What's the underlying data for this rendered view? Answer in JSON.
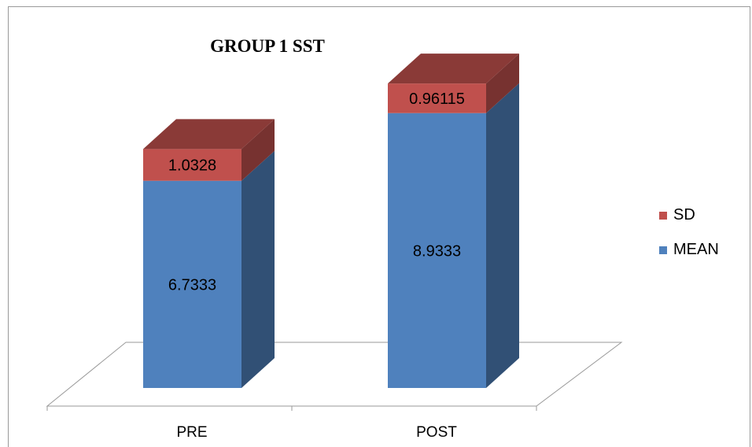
{
  "chart_data": {
    "type": "bar",
    "stacked": true,
    "three_d": true,
    "title": "GROUP 1 SST",
    "categories": [
      "PRE",
      "POST"
    ],
    "series": [
      {
        "name": "MEAN",
        "values": [
          6.7333,
          8.9333
        ],
        "labels": [
          "6.7333",
          "8.9333"
        ],
        "color": "#4f81bd"
      },
      {
        "name": "SD",
        "values": [
          1.0328,
          0.96115
        ],
        "labels": [
          "1.0328",
          "0.96115"
        ],
        "color": "#c0504d"
      }
    ],
    "legend_position": "right",
    "grid": false
  }
}
